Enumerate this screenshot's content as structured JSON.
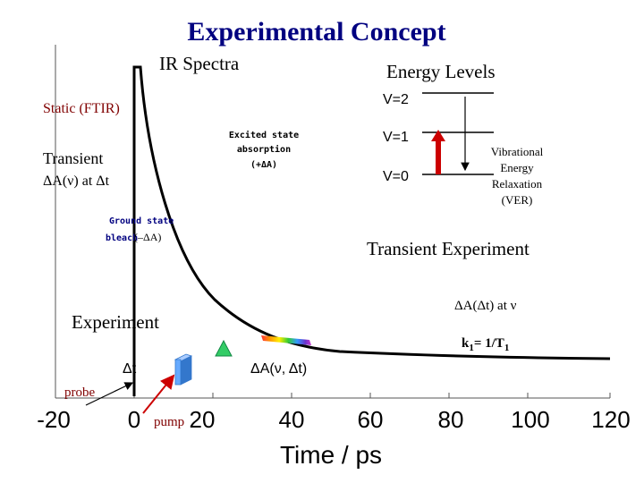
{
  "title": "Experimental Concept",
  "ir_spectra_label": "IR Spectra",
  "energy_levels_label": "Energy Levels",
  "static_label": "Static (FTIR)",
  "transient_label_line1": "Transient",
  "transient_label_line2": "ΔA(ν) at Δt",
  "excited_state_label_line1": "Excited state",
  "excited_state_label_line2": "absorption",
  "excited_state_label_line3": "(+ΔA)",
  "ground_state_label_line1": "Ground state",
  "ground_state_label_line2": "bleach",
  "ground_state_label_suffix": "(–ΔA)",
  "levels": [
    "V=2",
    "V=1",
    "V=0"
  ],
  "ver_label": [
    "Vibrational",
    "Energy",
    "Relaxation",
    "(VER)"
  ],
  "transient_experiment_label": "Transient Experiment",
  "delta_a_at_nu": "ΔA(Δt) at ν",
  "rate_label": "k",
  "rate_sub": "1",
  "rate_eq": "= 1/T",
  "rate_sub2": "1",
  "experiment_label": "Experiment",
  "delta_t_label": "Δt",
  "delta_a_label": "ΔA(ν, Δt)",
  "probe_label": "probe",
  "pump_label": "pump",
  "axis": {
    "ticks": [
      "-20",
      "0",
      "20",
      "40",
      "60",
      "80",
      "100",
      "120"
    ],
    "xlabel": "Time / ps"
  },
  "colors": {
    "title": "#000080",
    "curve": "#000000",
    "arrow_red": "#cc0000",
    "ground_state": "#000080",
    "triangle": "#33cc66",
    "cube": "#66aaff"
  }
}
